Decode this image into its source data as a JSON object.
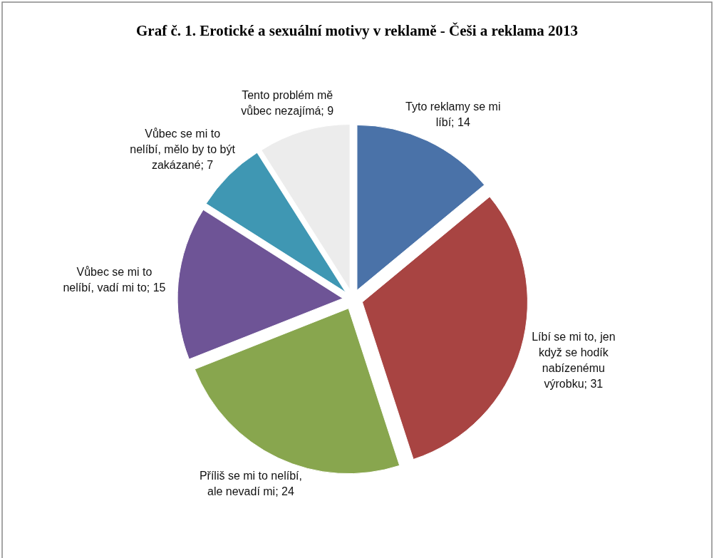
{
  "chart_data": {
    "type": "pie",
    "title": "Graf č. 1. Erotické a sexuální motivy v reklamě - Češi a reklama 2013",
    "categories": [
      "Tyto reklamy se mi líbí",
      "Líbí se mi to, jen když se hodík nabízenému výrobku",
      "Příliš se mi to nelíbí, ale nevadí mi",
      "Vůbec se mi to nelíbí, vadí mi to",
      "Vůbec se mi to nelíbí,  mělo by to být zakázané",
      "Tento problém mě vůbec nezajímá"
    ],
    "values": [
      14,
      31,
      24,
      15,
      7,
      9
    ],
    "value_labels": [
      "; 14",
      "; 31",
      "; 24",
      "; 15",
      "; 7",
      "; 9"
    ],
    "colors": [
      "#4a72a8",
      "#a84442",
      "#88a64e",
      "#6e5496",
      "#3f97b3",
      "#ececec"
    ]
  }
}
